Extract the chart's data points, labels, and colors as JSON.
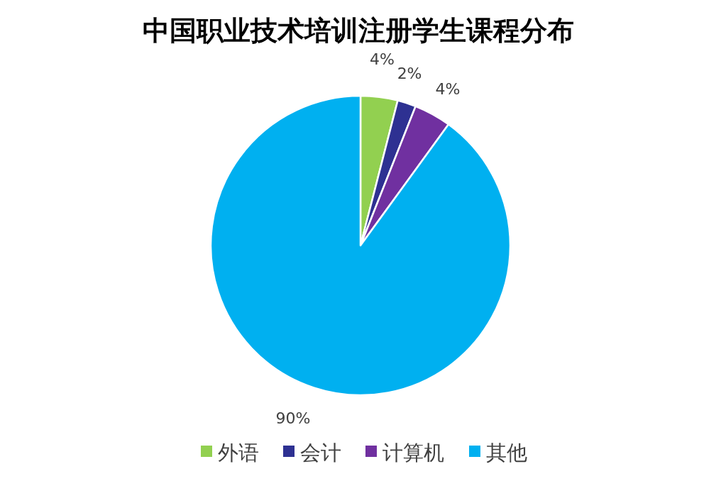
{
  "chart_data": {
    "type": "pie",
    "title": "中国职业技术培训注册学生课程分布",
    "categories": [
      "外语",
      "会计",
      "计算机",
      "其他"
    ],
    "values": [
      4,
      2,
      4,
      90
    ],
    "colors": [
      "#92d050",
      "#2e3192",
      "#7030a0",
      "#00b0f0"
    ],
    "value_labels": [
      "4%",
      "2%",
      "4%",
      "90%"
    ],
    "legend": "bottom"
  }
}
